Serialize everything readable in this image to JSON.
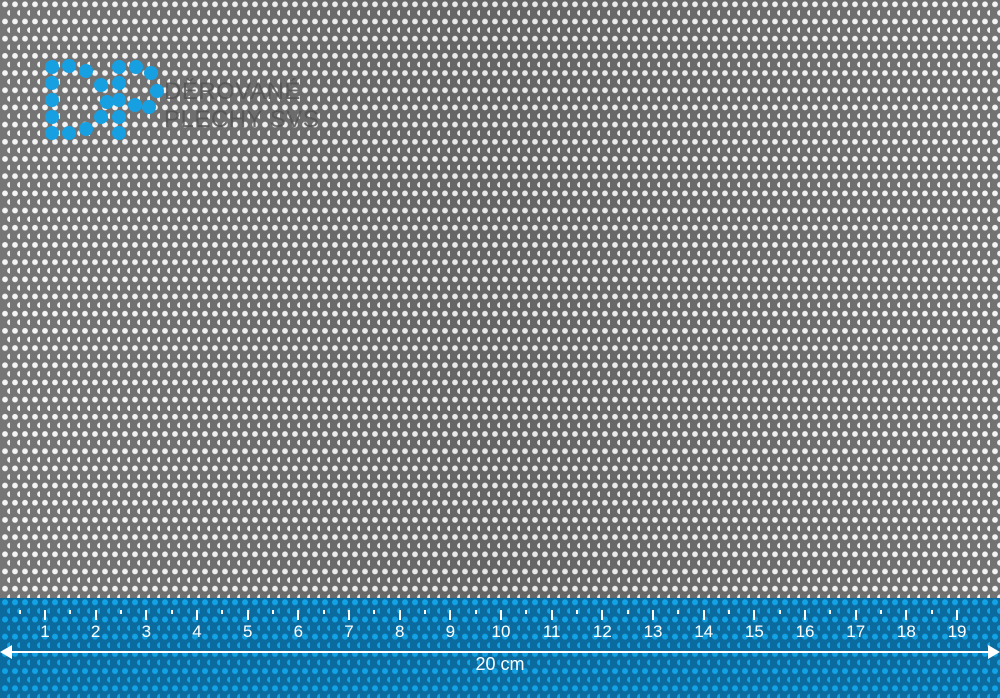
{
  "logo": {
    "monogram": "DP",
    "line1": "DĚROVANÉ",
    "line2": "PLECHY SVS",
    "color": "#16a0e2"
  },
  "ruler": {
    "numbers": [
      "1",
      "2",
      "3",
      "4",
      "5",
      "6",
      "7",
      "8",
      "9",
      "10",
      "11",
      "12",
      "13",
      "14",
      "15",
      "16",
      "17",
      "18",
      "19"
    ],
    "length_label": "20 cm",
    "color": "#0b6a9e"
  }
}
